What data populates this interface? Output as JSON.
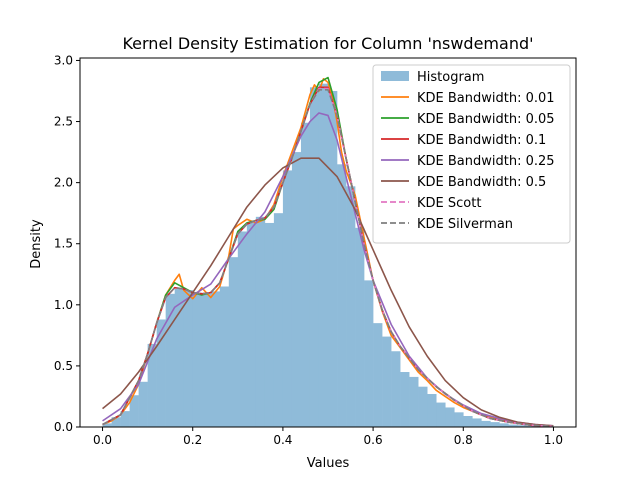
{
  "chart_data": {
    "type": "histogram+line",
    "title": "Kernel Density Estimation for Column 'nswdemand'",
    "xlabel": "Values",
    "ylabel": "Density",
    "xlim": [
      -0.05,
      1.05
    ],
    "ylim": [
      0,
      3.02
    ],
    "xticks": [
      0.0,
      0.2,
      0.4,
      0.6,
      0.8,
      1.0
    ],
    "yticks": [
      0.0,
      0.5,
      1.0,
      1.5,
      2.0,
      2.5,
      3.0
    ],
    "grid": false,
    "legend_position": "top-right",
    "histogram": {
      "name": "Histogram",
      "color": "#8fbbd9",
      "bins": [
        0.0,
        0.02,
        0.04,
        0.06,
        0.08,
        0.1,
        0.12,
        0.14,
        0.16,
        0.18,
        0.2,
        0.22,
        0.24,
        0.26,
        0.28,
        0.3,
        0.32,
        0.34,
        0.36,
        0.38,
        0.4,
        0.42,
        0.44,
        0.46,
        0.48,
        0.5,
        0.52,
        0.54,
        0.56,
        0.58,
        0.6,
        0.62,
        0.64,
        0.66,
        0.68,
        0.7,
        0.72,
        0.74,
        0.76,
        0.78,
        0.8,
        0.82,
        0.84,
        0.86,
        0.88,
        0.9,
        0.92,
        0.94,
        0.96,
        0.98,
        1.0
      ],
      "values": [
        0.03,
        0.08,
        0.13,
        0.26,
        0.37,
        0.68,
        0.88,
        1.09,
        1.13,
        1.12,
        1.1,
        1.09,
        1.11,
        1.15,
        1.39,
        1.6,
        1.67,
        1.72,
        1.67,
        1.75,
        2.1,
        2.25,
        2.49,
        2.78,
        2.81,
        2.75,
        2.15,
        1.97,
        1.63,
        1.2,
        0.85,
        0.74,
        0.62,
        0.45,
        0.41,
        0.33,
        0.27,
        0.2,
        0.16,
        0.12,
        0.09,
        0.07,
        0.05,
        0.04,
        0.03,
        0.02,
        0.015,
        0.01,
        0.005,
        0.003
      ]
    },
    "series": [
      {
        "name": "KDE Bandwidth: 0.01",
        "color": "#ff7f0e",
        "dash": "solid",
        "x": [
          0.0,
          0.02,
          0.04,
          0.06,
          0.08,
          0.1,
          0.12,
          0.14,
          0.16,
          0.17,
          0.18,
          0.2,
          0.22,
          0.24,
          0.26,
          0.28,
          0.29,
          0.3,
          0.32,
          0.34,
          0.36,
          0.38,
          0.4,
          0.42,
          0.44,
          0.46,
          0.47,
          0.48,
          0.49,
          0.5,
          0.51,
          0.52,
          0.53,
          0.54,
          0.56,
          0.58,
          0.6,
          0.62,
          0.64,
          0.66,
          0.68,
          0.7,
          0.72,
          0.74,
          0.76,
          0.78,
          0.8,
          0.84,
          0.88,
          0.92,
          0.96,
          1.0
        ],
        "y": [
          0.02,
          0.05,
          0.1,
          0.2,
          0.35,
          0.6,
          0.85,
          1.08,
          1.2,
          1.25,
          1.12,
          1.05,
          1.14,
          1.06,
          1.15,
          1.4,
          1.62,
          1.65,
          1.7,
          1.67,
          1.7,
          1.82,
          2.05,
          2.25,
          2.45,
          2.72,
          2.8,
          2.75,
          2.85,
          2.82,
          2.7,
          2.5,
          2.25,
          2.1,
          1.9,
          1.55,
          1.2,
          0.95,
          0.75,
          0.65,
          0.55,
          0.45,
          0.38,
          0.3,
          0.25,
          0.2,
          0.16,
          0.1,
          0.06,
          0.03,
          0.015,
          0.005
        ]
      },
      {
        "name": "KDE Bandwidth: 0.05",
        "color": "#2ca02c",
        "dash": "solid",
        "x": [
          0.0,
          0.04,
          0.08,
          0.1,
          0.12,
          0.14,
          0.16,
          0.18,
          0.2,
          0.22,
          0.24,
          0.26,
          0.28,
          0.3,
          0.32,
          0.34,
          0.36,
          0.38,
          0.4,
          0.42,
          0.44,
          0.46,
          0.48,
          0.5,
          0.52,
          0.54,
          0.56,
          0.58,
          0.6,
          0.62,
          0.64,
          0.66,
          0.7,
          0.74,
          0.78,
          0.82,
          0.86,
          0.9,
          0.95,
          1.0
        ],
        "y": [
          0.02,
          0.1,
          0.38,
          0.6,
          0.85,
          1.08,
          1.18,
          1.14,
          1.1,
          1.08,
          1.1,
          1.18,
          1.38,
          1.6,
          1.67,
          1.69,
          1.7,
          1.78,
          2.0,
          2.2,
          2.42,
          2.65,
          2.82,
          2.86,
          2.6,
          2.2,
          1.85,
          1.5,
          1.2,
          0.96,
          0.78,
          0.66,
          0.47,
          0.33,
          0.22,
          0.13,
          0.07,
          0.04,
          0.015,
          0.005
        ]
      },
      {
        "name": "KDE Bandwidth: 0.1",
        "color": "#d62728",
        "dash": "solid",
        "x": [
          0.0,
          0.04,
          0.08,
          0.1,
          0.12,
          0.14,
          0.16,
          0.18,
          0.2,
          0.22,
          0.24,
          0.26,
          0.28,
          0.3,
          0.32,
          0.34,
          0.36,
          0.38,
          0.4,
          0.42,
          0.44,
          0.46,
          0.48,
          0.5,
          0.52,
          0.54,
          0.56,
          0.58,
          0.6,
          0.62,
          0.64,
          0.66,
          0.7,
          0.74,
          0.78,
          0.82,
          0.86,
          0.9,
          0.95,
          1.0
        ],
        "y": [
          0.02,
          0.1,
          0.38,
          0.6,
          0.85,
          1.06,
          1.14,
          1.13,
          1.1,
          1.09,
          1.1,
          1.18,
          1.38,
          1.58,
          1.66,
          1.69,
          1.71,
          1.8,
          2.0,
          2.2,
          2.42,
          2.64,
          2.78,
          2.78,
          2.55,
          2.2,
          1.85,
          1.5,
          1.2,
          0.96,
          0.78,
          0.66,
          0.47,
          0.33,
          0.22,
          0.13,
          0.07,
          0.04,
          0.015,
          0.005
        ]
      },
      {
        "name": "KDE Bandwidth: 0.25",
        "color": "#9467bd",
        "dash": "solid",
        "x": [
          0.0,
          0.04,
          0.08,
          0.12,
          0.16,
          0.2,
          0.24,
          0.28,
          0.32,
          0.36,
          0.4,
          0.44,
          0.46,
          0.48,
          0.5,
          0.52,
          0.54,
          0.56,
          0.58,
          0.6,
          0.64,
          0.68,
          0.72,
          0.76,
          0.8,
          0.84,
          0.88,
          0.92,
          0.96,
          1.0
        ],
        "y": [
          0.05,
          0.15,
          0.35,
          0.72,
          0.98,
          1.08,
          1.17,
          1.38,
          1.58,
          1.76,
          2.05,
          2.38,
          2.5,
          2.57,
          2.55,
          2.35,
          2.05,
          1.75,
          1.45,
          1.2,
          0.84,
          0.58,
          0.4,
          0.27,
          0.18,
          0.11,
          0.07,
          0.04,
          0.02,
          0.01
        ]
      },
      {
        "name": "KDE Bandwidth: 0.5",
        "color": "#8c564b",
        "dash": "solid",
        "x": [
          0.0,
          0.04,
          0.08,
          0.12,
          0.16,
          0.2,
          0.24,
          0.28,
          0.32,
          0.36,
          0.4,
          0.44,
          0.48,
          0.52,
          0.56,
          0.6,
          0.64,
          0.68,
          0.72,
          0.76,
          0.8,
          0.84,
          0.88,
          0.92,
          0.96,
          1.0
        ],
        "y": [
          0.15,
          0.27,
          0.45,
          0.66,
          0.88,
          1.1,
          1.32,
          1.56,
          1.8,
          1.98,
          2.12,
          2.2,
          2.2,
          2.05,
          1.78,
          1.45,
          1.12,
          0.82,
          0.58,
          0.38,
          0.24,
          0.14,
          0.08,
          0.04,
          0.02,
          0.01
        ]
      },
      {
        "name": "KDE Scott",
        "color": "#e377c2",
        "dash": "dashed",
        "x": [
          0.0,
          0.04,
          0.08,
          0.1,
          0.12,
          0.14,
          0.16,
          0.18,
          0.2,
          0.22,
          0.24,
          0.26,
          0.28,
          0.3,
          0.32,
          0.34,
          0.36,
          0.38,
          0.4,
          0.42,
          0.44,
          0.46,
          0.48,
          0.5,
          0.52,
          0.54,
          0.56,
          0.58,
          0.6,
          0.62,
          0.64,
          0.66,
          0.7,
          0.74,
          0.78,
          0.82,
          0.86,
          0.9,
          0.95,
          1.0
        ],
        "y": [
          0.02,
          0.1,
          0.38,
          0.6,
          0.85,
          1.06,
          1.14,
          1.13,
          1.1,
          1.09,
          1.1,
          1.18,
          1.38,
          1.58,
          1.66,
          1.69,
          1.71,
          1.8,
          2.0,
          2.2,
          2.42,
          2.64,
          2.77,
          2.77,
          2.55,
          2.2,
          1.85,
          1.5,
          1.2,
          0.96,
          0.78,
          0.66,
          0.47,
          0.33,
          0.22,
          0.13,
          0.07,
          0.04,
          0.015,
          0.005
        ]
      },
      {
        "name": "KDE Silverman",
        "color": "#7f7f7f",
        "dash": "dashed",
        "x": [
          0.0,
          0.04,
          0.08,
          0.1,
          0.12,
          0.14,
          0.16,
          0.18,
          0.2,
          0.22,
          0.24,
          0.26,
          0.28,
          0.3,
          0.32,
          0.34,
          0.36,
          0.38,
          0.4,
          0.42,
          0.44,
          0.46,
          0.48,
          0.5,
          0.52,
          0.54,
          0.56,
          0.58,
          0.6,
          0.62,
          0.64,
          0.66,
          0.7,
          0.74,
          0.78,
          0.82,
          0.86,
          0.9,
          0.95,
          1.0
        ],
        "y": [
          0.02,
          0.1,
          0.38,
          0.6,
          0.85,
          1.06,
          1.14,
          1.13,
          1.1,
          1.09,
          1.1,
          1.18,
          1.38,
          1.58,
          1.66,
          1.69,
          1.71,
          1.8,
          2.0,
          2.2,
          2.42,
          2.64,
          2.76,
          2.76,
          2.55,
          2.2,
          1.85,
          1.5,
          1.2,
          0.96,
          0.78,
          0.66,
          0.47,
          0.33,
          0.22,
          0.13,
          0.07,
          0.04,
          0.015,
          0.005
        ]
      }
    ]
  }
}
